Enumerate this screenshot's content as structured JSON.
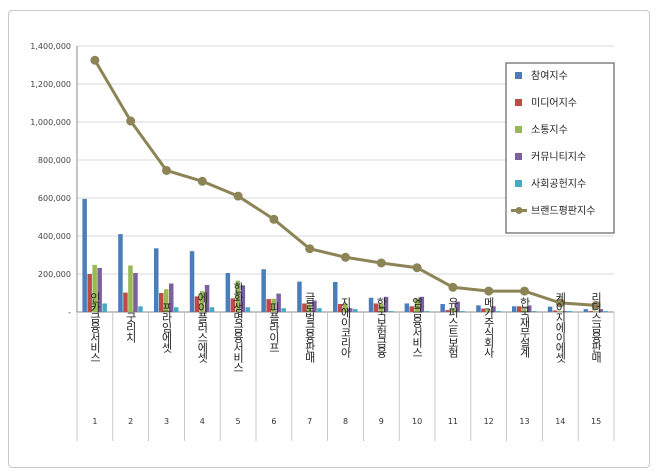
{
  "chart_data": {
    "type": "bar",
    "categories": [
      "인카금융서비스",
      "굿리치",
      "프라임에셋",
      "에이플러스에셋",
      "한화생명금융서비스",
      "피플라이프",
      "글로벌금융판매",
      "지에이코리아",
      "한국보험금융",
      "엠금융서비스",
      "유퍼스트보험",
      "메가주식회사",
      "한국재무설계",
      "케이지에이에셋",
      "리더스금융판매"
    ],
    "ranks": [
      "1",
      "2",
      "3",
      "4",
      "5",
      "6",
      "7",
      "8",
      "9",
      "10",
      "11",
      "12",
      "13",
      "14",
      "15"
    ],
    "ylim": [
      0,
      1400000
    ],
    "yticks": [
      "-",
      "200,000",
      "400,000",
      "600,000",
      "800,000",
      "1,000,000",
      "1,200,000",
      "1,400,000"
    ],
    "grid": true,
    "legend_position": "right",
    "series": [
      {
        "name": "참여지수",
        "color": "#4a7ebb",
        "values": [
          595000,
          410000,
          335000,
          320000,
          205000,
          225000,
          160000,
          158000,
          75000,
          45000,
          42000,
          35000,
          30000,
          28000,
          15000
        ]
      },
      {
        "name": "미디어지수",
        "color": "#be4b48",
        "values": [
          200000,
          102000,
          100000,
          82000,
          72000,
          68000,
          45000,
          42000,
          45000,
          30000,
          10000,
          18000,
          30000,
          8000,
          5000
        ]
      },
      {
        "name": "소통지수",
        "color": "#98b954",
        "values": [
          248000,
          245000,
          120000,
          110000,
          165000,
          70000,
          40000,
          45000,
          45000,
          70000,
          20000,
          15000,
          15000,
          5000,
          5000
        ]
      },
      {
        "name": "커뮤니티지수",
        "color": "#7d60a0",
        "values": [
          232000,
          205000,
          150000,
          142000,
          140000,
          97000,
          60000,
          20000,
          80000,
          80000,
          55000,
          30000,
          35000,
          5000,
          15000
        ]
      },
      {
        "name": "사회공헌지수",
        "color": "#46aac5",
        "values": [
          45000,
          30000,
          25000,
          25000,
          25000,
          20000,
          20000,
          15000,
          5000,
          5000,
          5000,
          5000,
          5000,
          5000,
          5000
        ]
      }
    ],
    "line": {
      "name": "브랜드평판지수",
      "color": "#8c8356",
      "values": [
        1325000,
        1005000,
        745000,
        688000,
        610000,
        488000,
        333000,
        288000,
        258000,
        233000,
        130000,
        110000,
        110000,
        48000,
        35000
      ]
    }
  }
}
